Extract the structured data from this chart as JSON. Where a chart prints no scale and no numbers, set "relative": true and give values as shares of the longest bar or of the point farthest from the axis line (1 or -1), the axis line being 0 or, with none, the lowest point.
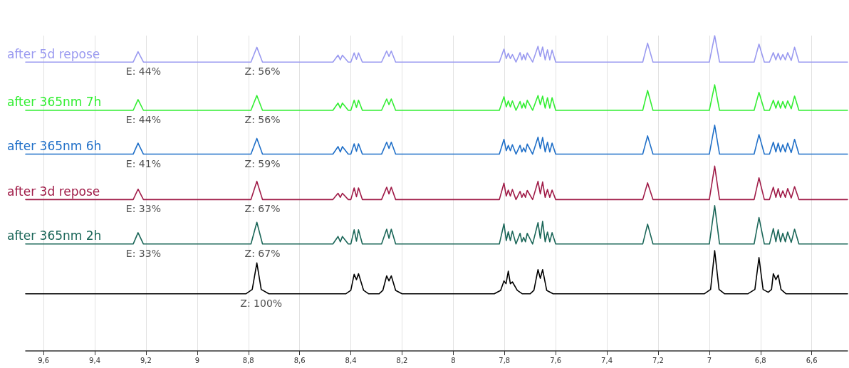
{
  "chart_data": {
    "type": "line",
    "relative": true,
    "grid": "x",
    "marker": "none",
    "line_style": "solid",
    "xlim": [
      9.67,
      6.46
    ],
    "xticks": [
      {
        "value": 9.6,
        "label": "9,6"
      },
      {
        "value": 9.4,
        "label": "9,4"
      },
      {
        "value": 9.2,
        "label": "9,2"
      },
      9,
      {
        "value": 8.8,
        "label": "8,8"
      },
      {
        "value": 8.6,
        "label": "8,6"
      },
      {
        "value": 8.4,
        "label": "8,4"
      },
      {
        "value": 8.2,
        "label": "8,2"
      },
      8,
      {
        "value": 7.8,
        "label": "7,8"
      },
      {
        "value": 7.6,
        "label": "7,6"
      },
      {
        "value": 7.4,
        "label": "7,4"
      },
      {
        "value": 7.2,
        "label": "7,2"
      },
      7,
      {
        "value": 6.8,
        "label": "6,8"
      },
      {
        "value": 6.6,
        "label": "6,6"
      }
    ],
    "x": [
      9.67,
      9.25,
      9.231,
      9.21,
      8.79,
      8.767,
      8.745,
      8.47,
      8.45,
      8.441,
      8.433,
      8.41,
      8.4,
      8.387,
      8.378,
      8.37,
      8.355,
      8.28,
      8.26,
      8.251,
      8.242,
      8.225,
      7.82,
      7.802,
      7.793,
      7.785,
      7.777,
      7.769,
      7.755,
      7.739,
      7.732,
      7.725,
      7.718,
      7.711,
      7.69,
      7.669,
      7.66,
      7.651,
      7.641,
      7.632,
      7.623,
      7.614,
      7.6,
      7.26,
      7.241,
      7.22,
      7.0,
      6.979,
      6.96,
      6.825,
      6.806,
      6.785,
      6.765,
      6.75,
      6.74,
      6.731,
      6.722,
      6.713,
      6.703,
      6.694,
      6.68,
      6.667,
      6.65,
      6.46
    ],
    "series": [
      {
        "name": "after 5d repose",
        "color": "#9a9af0",
        "values": [
          0.916,
          0.916,
          0.949,
          0.916,
          0.916,
          0.963,
          0.916,
          0.916,
          0.938,
          0.923,
          0.938,
          0.916,
          0.916,
          0.945,
          0.925,
          0.945,
          0.916,
          0.916,
          0.951,
          0.934,
          0.951,
          0.916,
          0.916,
          0.957,
          0.927,
          0.944,
          0.927,
          0.94,
          0.916,
          0.946,
          0.923,
          0.94,
          0.923,
          0.945,
          0.916,
          0.966,
          0.934,
          0.964,
          0.923,
          0.955,
          0.923,
          0.954,
          0.916,
          0.916,
          0.976,
          0.916,
          0.916,
          1,
          0.916,
          0.916,
          0.973,
          0.916,
          0.916,
          0.946,
          0.923,
          0.944,
          0.923,
          0.94,
          0.923,
          0.946,
          0.921,
          0.963,
          0.916,
          0.916
        ]
      },
      {
        "name": "after 365nm 7h",
        "color": "#33ee33",
        "values": [
          0.763,
          0.763,
          0.797,
          0.763,
          0.763,
          0.81,
          0.763,
          0.763,
          0.786,
          0.77,
          0.786,
          0.763,
          0.763,
          0.795,
          0.772,
          0.795,
          0.763,
          0.763,
          0.799,
          0.781,
          0.799,
          0.763,
          0.763,
          0.806,
          0.774,
          0.793,
          0.774,
          0.793,
          0.763,
          0.791,
          0.77,
          0.786,
          0.77,
          0.795,
          0.763,
          0.81,
          0.781,
          0.808,
          0.77,
          0.803,
          0.77,
          0.803,
          0.763,
          0.763,
          0.826,
          0.763,
          0.763,
          0.844,
          0.763,
          0.763,
          0.82,
          0.763,
          0.763,
          0.795,
          0.77,
          0.793,
          0.77,
          0.791,
          0.77,
          0.793,
          0.768,
          0.808,
          0.763,
          0.763
        ]
      },
      {
        "name": "after 365nm 6h",
        "color": "#1f6fc8",
        "values": [
          0.624,
          0.624,
          0.659,
          0.624,
          0.624,
          0.674,
          0.624,
          0.624,
          0.648,
          0.631,
          0.648,
          0.624,
          0.624,
          0.657,
          0.633,
          0.657,
          0.624,
          0.624,
          0.662,
          0.642,
          0.662,
          0.624,
          0.624,
          0.671,
          0.635,
          0.652,
          0.635,
          0.654,
          0.624,
          0.652,
          0.631,
          0.644,
          0.631,
          0.656,
          0.624,
          0.678,
          0.642,
          0.677,
          0.631,
          0.662,
          0.631,
          0.659,
          0.624,
          0.624,
          0.682,
          0.624,
          0.624,
          0.716,
          0.624,
          0.624,
          0.686,
          0.624,
          0.624,
          0.662,
          0.631,
          0.659,
          0.631,
          0.654,
          0.631,
          0.659,
          0.629,
          0.671,
          0.624,
          0.624
        ]
      },
      {
        "name": "after 3d repose",
        "color": "#a01c48",
        "values": [
          0.48,
          0.48,
          0.513,
          0.48,
          0.48,
          0.538,
          0.48,
          0.48,
          0.5,
          0.487,
          0.5,
          0.48,
          0.48,
          0.517,
          0.489,
          0.517,
          0.48,
          0.48,
          0.519,
          0.498,
          0.519,
          0.48,
          0.48,
          0.532,
          0.491,
          0.51,
          0.491,
          0.512,
          0.48,
          0.506,
          0.487,
          0.5,
          0.487,
          0.509,
          0.48,
          0.538,
          0.498,
          0.536,
          0.487,
          0.512,
          0.487,
          0.51,
          0.48,
          0.48,
          0.533,
          0.48,
          0.48,
          0.586,
          0.48,
          0.48,
          0.549,
          0.48,
          0.48,
          0.519,
          0.487,
          0.515,
          0.487,
          0.508,
          0.487,
          0.515,
          0.485,
          0.521,
          0.48,
          0.48
        ]
      },
      {
        "name": "after 365nm 2h",
        "color": "#1a6658",
        "values": [
          0.339,
          0.339,
          0.375,
          0.339,
          0.339,
          0.408,
          0.339,
          0.339,
          0.363,
          0.346,
          0.363,
          0.339,
          0.339,
          0.384,
          0.348,
          0.384,
          0.339,
          0.339,
          0.386,
          0.357,
          0.386,
          0.339,
          0.339,
          0.403,
          0.35,
          0.378,
          0.35,
          0.38,
          0.339,
          0.373,
          0.346,
          0.36,
          0.346,
          0.373,
          0.339,
          0.407,
          0.357,
          0.411,
          0.346,
          0.377,
          0.346,
          0.375,
          0.339,
          0.339,
          0.402,
          0.339,
          0.339,
          0.461,
          0.339,
          0.339,
          0.423,
          0.339,
          0.339,
          0.388,
          0.346,
          0.384,
          0.346,
          0.373,
          0.346,
          0.377,
          0.344,
          0.386,
          0.339,
          0.339
        ]
      },
      {
        "color": "#000000",
        "x": [
          9.67,
          8.81,
          8.785,
          8.767,
          8.75,
          8.72,
          8.42,
          8.4,
          8.387,
          8.378,
          8.37,
          8.35,
          8.33,
          8.29,
          8.275,
          8.26,
          8.251,
          8.242,
          8.225,
          8.2,
          7.84,
          7.815,
          7.802,
          7.794,
          7.785,
          7.777,
          7.769,
          7.75,
          7.73,
          7.7,
          7.685,
          7.669,
          7.66,
          7.651,
          7.635,
          7.61,
          7.02,
          6.995,
          6.979,
          6.962,
          6.94,
          6.85,
          6.822,
          6.806,
          6.79,
          6.77,
          6.757,
          6.75,
          6.74,
          6.731,
          6.72,
          6.7,
          6.46
        ],
        "values": [
          0.181,
          0.181,
          0.195,
          0.279,
          0.195,
          0.181,
          0.181,
          0.192,
          0.243,
          0.226,
          0.245,
          0.192,
          0.181,
          0.181,
          0.192,
          0.238,
          0.222,
          0.238,
          0.192,
          0.181,
          0.181,
          0.192,
          0.222,
          0.213,
          0.253,
          0.213,
          0.219,
          0.192,
          0.181,
          0.181,
          0.192,
          0.258,
          0.23,
          0.258,
          0.192,
          0.181,
          0.181,
          0.195,
          0.318,
          0.195,
          0.181,
          0.181,
          0.195,
          0.296,
          0.195,
          0.186,
          0.195,
          0.245,
          0.226,
          0.241,
          0.195,
          0.181,
          0.181
        ]
      }
    ],
    "annotations": [
      {
        "text": "E: 44%",
        "x": 9.21,
        "y": 0.916
      },
      {
        "text": "Z: 56%",
        "x": 8.745,
        "y": 0.916
      },
      {
        "text": "E: 44%",
        "x": 9.21,
        "y": 0.763
      },
      {
        "text": "Z: 56%",
        "x": 8.745,
        "y": 0.763
      },
      {
        "text": "E: 41%",
        "x": 9.21,
        "y": 0.624
      },
      {
        "text": "Z: 59%",
        "x": 8.745,
        "y": 0.624
      },
      {
        "text": "E: 33%",
        "x": 9.21,
        "y": 0.48
      },
      {
        "text": "Z: 67%",
        "x": 8.745,
        "y": 0.48
      },
      {
        "text": "E: 33%",
        "x": 9.21,
        "y": 0.339
      },
      {
        "text": "Z: 67%",
        "x": 8.745,
        "y": 0.339
      },
      {
        "text": "Z: 100%",
        "x": 8.75,
        "y": 0.181
      }
    ]
  }
}
